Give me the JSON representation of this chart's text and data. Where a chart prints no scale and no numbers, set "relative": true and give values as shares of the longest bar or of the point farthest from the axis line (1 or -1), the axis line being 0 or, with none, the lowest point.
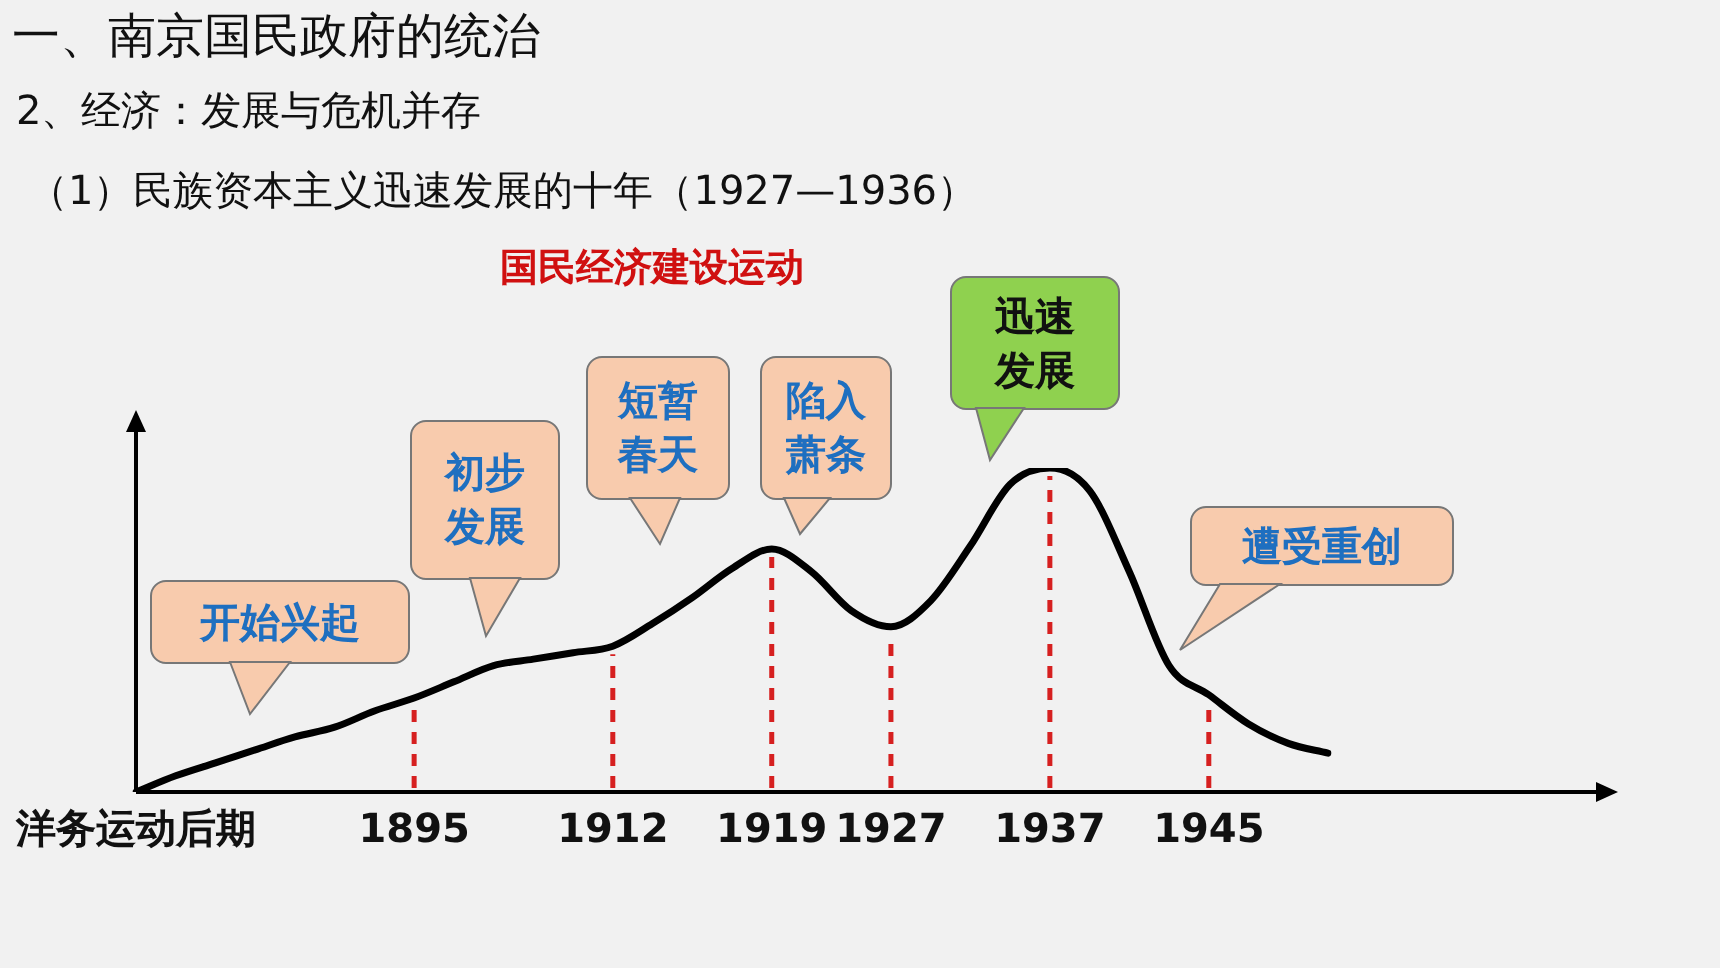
{
  "chart_data": {
    "type": "line",
    "relative": true,
    "title": "一、南京国民政府的统治",
    "subtitle": "2、经济：发展与危机并存",
    "annotations": [
      "（1）民族资本主义迅速发展的十年（1927—1936）",
      "国民经济建设运动",
      "开始兴起",
      "初步发展",
      "短暂春天",
      "陷入萧条",
      "迅速发展",
      "遭受重创"
    ],
    "categories": [
      "洋务运动后期",
      null,
      null,
      null,
      null,
      null,
      null,
      "1895",
      null,
      null,
      null,
      null,
      "1912",
      null,
      null,
      null,
      "1919",
      null,
      null,
      "1927",
      null,
      null,
      null,
      "1937",
      null,
      null,
      null,
      "1945",
      null,
      null,
      null
    ],
    "series": [
      {
        "color": "#000000",
        "values": [
          0,
          0.05,
          0.09,
          0.13,
          0.17,
          0.2,
          0.25,
          0.29,
          0.34,
          0.39,
          0.41,
          0.43,
          0.45,
          0.52,
          0.6,
          0.69,
          0.75,
          0.68,
          0.56,
          0.51,
          0.59,
          0.76,
          0.95,
          1,
          0.93,
          0.68,
          0.39,
          0.3,
          0.21,
          0.15,
          0.12
        ]
      }
    ],
    "ref_lines": [
      {
        "axis": "x",
        "value": "1895",
        "color": "#d62020",
        "line_style": "dashed"
      },
      {
        "axis": "x",
        "value": "1912",
        "color": "#d62020",
        "line_style": "dashed"
      },
      {
        "axis": "x",
        "value": "1919",
        "color": "#d62020",
        "line_style": "dashed"
      },
      {
        "axis": "x",
        "value": "1927",
        "color": "#d62020",
        "line_style": "dashed"
      },
      {
        "axis": "x",
        "value": "1937",
        "color": "#d62020",
        "line_style": "dashed"
      },
      {
        "axis": "x",
        "value": "1945",
        "color": "#d62020",
        "line_style": "dashed"
      }
    ],
    "grid": false,
    "legend": false,
    "marker": "none",
    "line_style": "solid"
  }
}
